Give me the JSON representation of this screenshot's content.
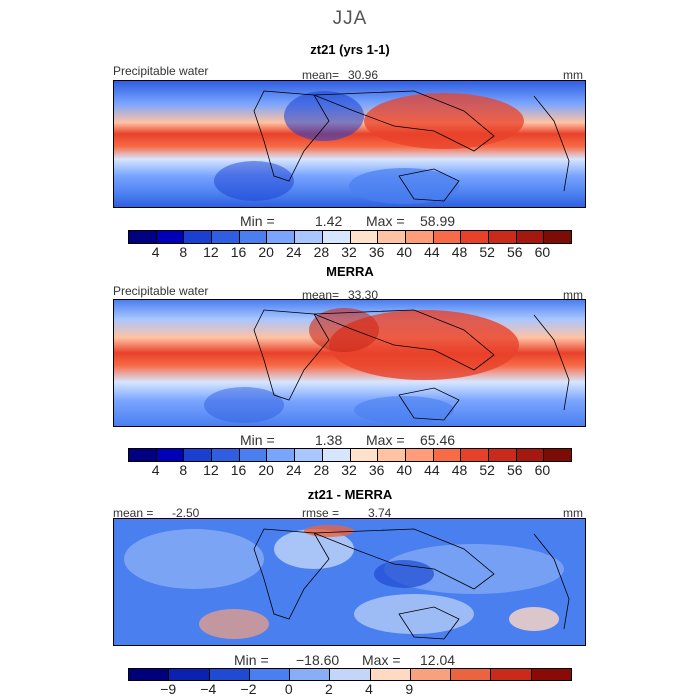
{
  "season": "JJA",
  "palettes": {
    "field": [
      "#000080",
      "#0000b8",
      "#1a3fd1",
      "#2f5fe0",
      "#4a7ff0",
      "#7aa5ff",
      "#a8c6ff",
      "#d7e6ff",
      "#ffe2cc",
      "#ffc2a3",
      "#ff9d7a",
      "#f76b47",
      "#e8412a",
      "#c92a1a",
      "#a51810",
      "#7d0c07"
    ],
    "diff": [
      "#00007a",
      "#0a22b0",
      "#1e4bd2",
      "#4a7ff0",
      "#88aef5",
      "#c1d6f8",
      "#ffd9c2",
      "#f7a17d",
      "#ea6440",
      "#c92a1a",
      "#8a0a05"
    ]
  },
  "panels": [
    {
      "title": "zt21 (yrs 1-1)",
      "variable": "Precipitable water",
      "mean_label": "mean=",
      "mean_value": "30.96",
      "units": "mm",
      "min_label": "Min =",
      "min_value": "1.42",
      "max_label": "Max =",
      "max_value": "58.99",
      "colorbar_ticks": [
        "4",
        "8",
        "12",
        "16",
        "20",
        "24",
        "28",
        "32",
        "36",
        "40",
        "44",
        "48",
        "52",
        "56",
        "60"
      ]
    },
    {
      "title": "MERRA",
      "variable": "Precipitable water",
      "mean_label": "mean=",
      "mean_value": "33.30",
      "units": "mm",
      "min_label": "Min =",
      "min_value": "1.38",
      "max_label": "Max =",
      "max_value": "65.46",
      "colorbar_ticks": [
        "4",
        "8",
        "12",
        "16",
        "20",
        "24",
        "28",
        "32",
        "36",
        "40",
        "44",
        "48",
        "52",
        "56",
        "60"
      ]
    },
    {
      "title": "zt21 - MERRA",
      "mean_label": "mean =",
      "mean_value": "-2.50",
      "rmse_label": "rmse =",
      "rmse_value": "3.74",
      "units": "mm",
      "min_label": "Min =",
      "min_value": "−18.60",
      "max_label": "Max =",
      "max_value": "12.04",
      "colorbar_ticks": [
        "−9",
        "−4",
        "−2",
        "0",
        "2",
        "4",
        "9"
      ]
    }
  ]
}
